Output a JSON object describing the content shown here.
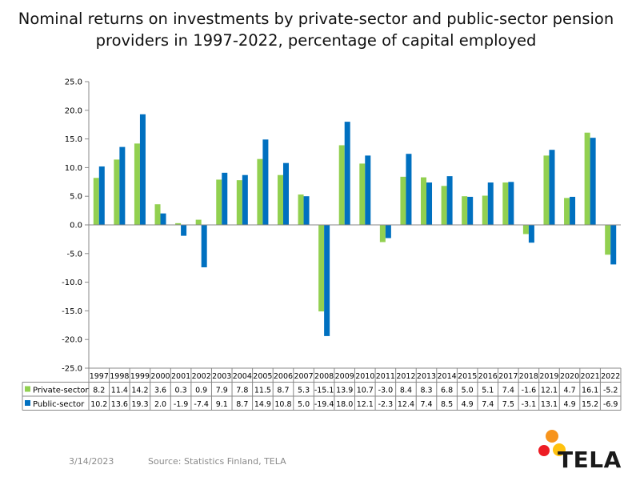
{
  "title": "Nominal returns on investments by private-sector and public-sector pension providers in 1997-2022, percentage of capital employed",
  "title_lines": [
    "Nominal returns on investments by private-sector and public-sector pension",
    "providers in 1997-2022, percentage of capital employed"
  ],
  "footer": {
    "date": "3/14/2023",
    "source": "Source: Statistics Finland, TELA"
  },
  "logo": {
    "text": "TELA",
    "colors": [
      "#f7941d",
      "#ed1c24",
      "#ffc20e"
    ]
  },
  "chart_data": {
    "type": "bar",
    "categories": [
      "1997",
      "1998",
      "1999",
      "2000",
      "2001",
      "2002",
      "2003",
      "2004",
      "2005",
      "2006",
      "2007",
      "2008",
      "2009",
      "2010",
      "2011",
      "2012",
      "2013",
      "2014",
      "2015",
      "2016",
      "2017",
      "2018",
      "2019",
      "2020",
      "2021",
      "2022"
    ],
    "series": [
      {
        "name": "Private-sector",
        "color": "#92d050",
        "values": [
          8.2,
          11.4,
          14.2,
          3.6,
          0.3,
          0.9,
          7.9,
          7.8,
          11.5,
          8.7,
          5.3,
          -15.1,
          13.9,
          10.7,
          -3.0,
          8.4,
          8.3,
          6.8,
          5.0,
          5.1,
          7.4,
          -1.6,
          12.1,
          4.7,
          16.1,
          -5.2
        ],
        "labels": [
          "8.2",
          "11.4",
          "14.2",
          "3.6",
          "0.3",
          "0.9",
          "7.9",
          "7.8",
          "11.5",
          "8.7",
          "5.3",
          "-15.1",
          "13.9",
          "10.7",
          "-3.0",
          "8.4",
          "8.3",
          "6.8",
          "5.0",
          "5.1",
          "7.4",
          "-1.6",
          "12.1",
          "4.7",
          "16.1",
          "-5.2"
        ]
      },
      {
        "name": "Public-sector",
        "color": "#0070c0",
        "values": [
          10.2,
          13.6,
          19.3,
          2.0,
          -1.9,
          -7.4,
          9.1,
          8.7,
          14.9,
          10.8,
          5.0,
          -19.4,
          18.0,
          12.1,
          -2.3,
          12.4,
          7.4,
          8.5,
          4.9,
          7.4,
          7.5,
          -3.1,
          13.1,
          4.9,
          15.2,
          -6.9
        ],
        "labels": [
          "10.2",
          "13.6",
          "19.3",
          "2.0",
          "-1.9",
          "-7.4",
          "9.1",
          "8.7",
          "14.9",
          "10.8",
          "5.0",
          "-19.4",
          "18.0",
          "12.1",
          "-2.3",
          "12.4",
          "7.4",
          "8.5",
          "4.9",
          "7.4",
          "7.5",
          "-3.1",
          "13.1",
          "4.9",
          "15.2",
          "-6.9"
        ]
      }
    ],
    "ylim": [
      -25,
      25
    ],
    "yticks": [
      "25.0",
      "20.0",
      "15.0",
      "10.0",
      "5.0",
      "0.0",
      "-5.0",
      "-10.0",
      "-15.0",
      "-20.0",
      "-25.0"
    ],
    "grid": false,
    "legend": "data-table"
  }
}
